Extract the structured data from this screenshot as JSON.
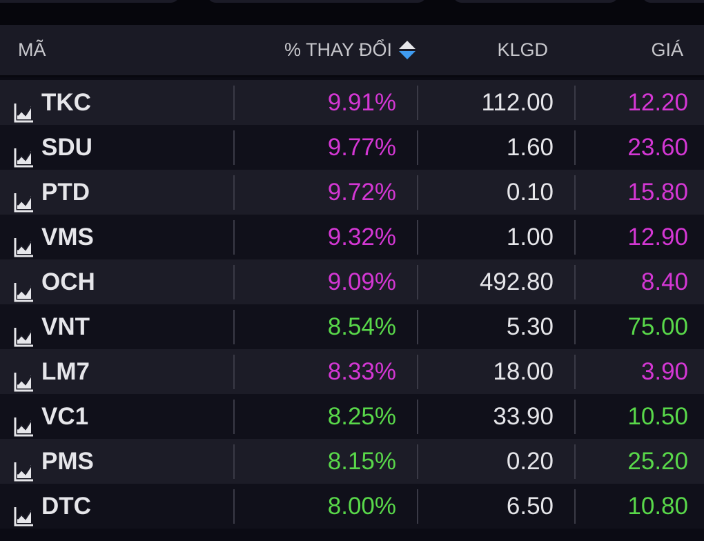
{
  "header": {
    "code_label": "MÃ",
    "change_label": "% THAY ĐỔI",
    "volume_label": "KLGD",
    "price_label": "GIÁ"
  },
  "colors": {
    "ceiling": "#d437d4",
    "up": "#59d84a"
  },
  "rows": [
    {
      "code": "TKC",
      "change": "9.91%",
      "volume": "112.00",
      "price": "12.20",
      "status": "ceiling"
    },
    {
      "code": "SDU",
      "change": "9.77%",
      "volume": "1.60",
      "price": "23.60",
      "status": "ceiling"
    },
    {
      "code": "PTD",
      "change": "9.72%",
      "volume": "0.10",
      "price": "15.80",
      "status": "ceiling"
    },
    {
      "code": "VMS",
      "change": "9.32%",
      "volume": "1.00",
      "price": "12.90",
      "status": "ceiling"
    },
    {
      "code": "OCH",
      "change": "9.09%",
      "volume": "492.80",
      "price": "8.40",
      "status": "ceiling"
    },
    {
      "code": "VNT",
      "change": "8.54%",
      "volume": "5.30",
      "price": "75.00",
      "status": "up"
    },
    {
      "code": "LM7",
      "change": "8.33%",
      "volume": "18.00",
      "price": "3.90",
      "status": "ceiling"
    },
    {
      "code": "VC1",
      "change": "8.25%",
      "volume": "33.90",
      "price": "10.50",
      "status": "up"
    },
    {
      "code": "PMS",
      "change": "8.15%",
      "volume": "0.20",
      "price": "25.20",
      "status": "up"
    },
    {
      "code": "DTC",
      "change": "8.00%",
      "volume": "6.50",
      "price": "10.80",
      "status": "up"
    }
  ]
}
